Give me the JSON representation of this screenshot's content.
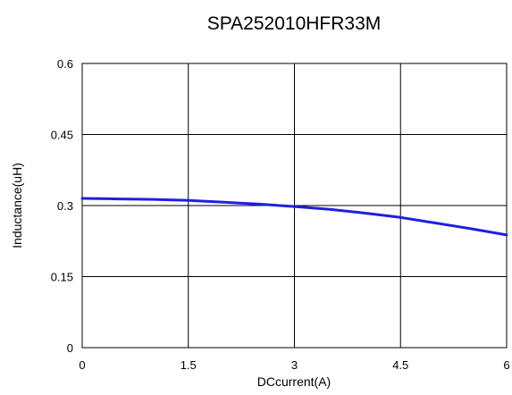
{
  "chart_data": {
    "type": "line",
    "title": "SPA252010HFR33M",
    "xlabel": "DCcurrent(A)",
    "ylabel": "Inductance(uH)",
    "xlim": [
      0,
      6
    ],
    "ylim": [
      0,
      0.6
    ],
    "xticks": [
      0,
      1.5,
      3,
      4.5,
      6
    ],
    "yticks": [
      0,
      0.15,
      0.3,
      0.45,
      0.6
    ],
    "xtick_labels": [
      "0",
      "1.5",
      "3",
      "4.5",
      "6"
    ],
    "ytick_labels": [
      "0",
      "0.15",
      "0.3",
      "0.45",
      "0.6"
    ],
    "grid": true,
    "series_color": "#1f1fe0",
    "series": [
      {
        "x": [
          0,
          0.5,
          1.0,
          1.5,
          2.0,
          2.5,
          3.0,
          3.5,
          4.0,
          4.5,
          5.0,
          5.5,
          6.0
        ],
        "y": [
          0.315,
          0.314,
          0.313,
          0.311,
          0.307,
          0.303,
          0.298,
          0.292,
          0.284,
          0.275,
          0.263,
          0.251,
          0.238
        ]
      }
    ]
  }
}
